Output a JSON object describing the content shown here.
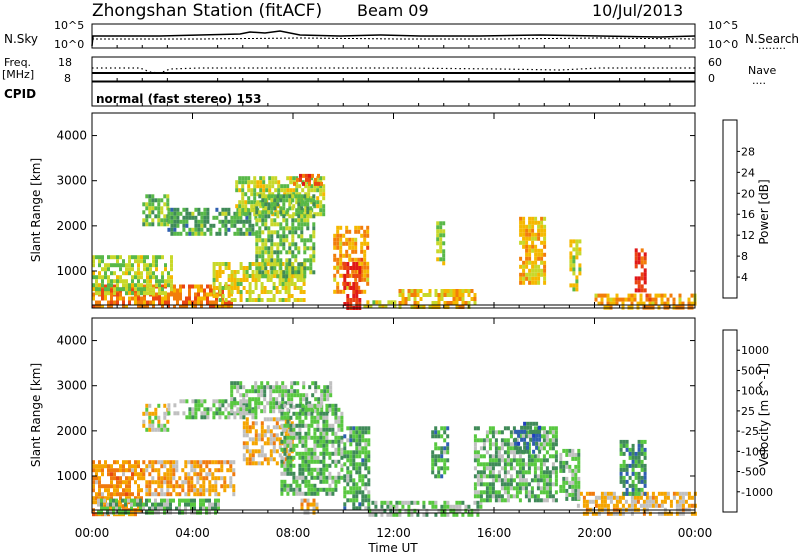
{
  "header": {
    "station_title": "Zhongshan Station (fitACF)",
    "beam_label": "Beam 09",
    "date_label": "10/Jul/2013"
  },
  "sky_panel": {
    "left_label": "N.Sky",
    "left_top": "10^5",
    "left_bottom": "10^0",
    "right_label": "N.Search",
    "right_top": "10^5",
    "right_bottom": "10^0",
    "right_legend": "........"
  },
  "freq_panel": {
    "left_label_1": "Freq.",
    "left_label_2": "[MHz]",
    "left_top": "18",
    "left_bottom": "8",
    "right_label": "Nave",
    "right_top": "60",
    "right_bottom": "0",
    "right_legend": "...."
  },
  "cpid_panel": {
    "label": "CPID",
    "mode": "normal (fast stereo) 153"
  },
  "colors": {
    "power": [
      "#1a2bff",
      "#2f5fb0",
      "#3f8a58",
      "#58b848",
      "#c8d82a",
      "#f5b800",
      "#f27d0a",
      "#ea4512",
      "#e01818"
    ],
    "velocity": [
      "#e01818",
      "#e84a10",
      "#f07a0e",
      "#f5a500",
      "#c0c0c0",
      "#58c840",
      "#3f8a58",
      "#2f5fb0",
      "#1f3fc0"
    ]
  },
  "chart_data": [
    {
      "type": "heatmap",
      "title": "Zhongshan Station (fitACF)",
      "xlabel": "",
      "ylabel": "Slant Range [km]",
      "xlim_hours": [
        0,
        24
      ],
      "ylim": [
        180,
        4500
      ],
      "yticks": [
        1000,
        2000,
        3000,
        4000
      ],
      "colorbar": {
        "label": "Power [dB]",
        "ticks": [
          "4",
          "8",
          "12",
          "16",
          "20",
          "24",
          "28"
        ],
        "range": [
          0,
          30
        ]
      },
      "regions": [
        {
          "t": [
            0.0,
            5.5
          ],
          "r": [
            180,
            700
          ],
          "level": 22
        },
        {
          "t": [
            0.0,
            3.2
          ],
          "r": [
            500,
            1350
          ],
          "level": 14
        },
        {
          "t": [
            2.0,
            3.0
          ],
          "r": [
            2000,
            2700
          ],
          "level": 12
        },
        {
          "t": [
            3.0,
            6.5
          ],
          "r": [
            1800,
            2400
          ],
          "level": 10
        },
        {
          "t": [
            4.8,
            8.5
          ],
          "r": [
            400,
            1200
          ],
          "level": 16
        },
        {
          "t": [
            5.7,
            9.2
          ],
          "r": [
            2300,
            3100
          ],
          "level": 14
        },
        {
          "t": [
            6.5,
            8.8
          ],
          "r": [
            900,
            2700
          ],
          "level": 12
        },
        {
          "t": [
            8.0,
            9.1
          ],
          "r": [
            2900,
            3150
          ],
          "level": 24
        },
        {
          "t": [
            9.6,
            11.0
          ],
          "r": [
            500,
            2000
          ],
          "level": 20
        },
        {
          "t": [
            10.0,
            10.6
          ],
          "r": [
            200,
            1200
          ],
          "level": 28
        },
        {
          "t": [
            10.8,
            12.0
          ],
          "r": [
            180,
            350
          ],
          "level": 16
        },
        {
          "t": [
            12.2,
            15.2
          ],
          "r": [
            180,
            600
          ],
          "level": 18
        },
        {
          "t": [
            13.7,
            14.0
          ],
          "r": [
            1200,
            2100
          ],
          "level": 14
        },
        {
          "t": [
            17.0,
            18.0
          ],
          "r": [
            700,
            2200
          ],
          "level": 18
        },
        {
          "t": [
            19.0,
            19.4
          ],
          "r": [
            600,
            1700
          ],
          "level": 16
        },
        {
          "t": [
            20.0,
            24.0
          ],
          "r": [
            180,
            500
          ],
          "level": 20
        },
        {
          "t": [
            21.6,
            22.0
          ],
          "r": [
            600,
            1500
          ],
          "level": 26
        }
      ]
    },
    {
      "type": "heatmap",
      "xlabel": "Time UT",
      "ylabel": "Slant Range [km]",
      "xlim_hours": [
        0,
        24
      ],
      "xticks": [
        "00:00",
        "04:00",
        "08:00",
        "12:00",
        "16:00",
        "20:00",
        "00:00"
      ],
      "ylim": [
        180,
        4500
      ],
      "yticks": [
        1000,
        2000,
        3000,
        4000
      ],
      "colorbar": {
        "label": "Velocity [m s^-1]",
        "ticks": [
          "1000",
          "500",
          "100",
          "25",
          "-25",
          "-100",
          "-500",
          "-1000"
        ],
        "range": [
          -1200,
          1200
        ]
      },
      "regions": [
        {
          "t": [
            0.0,
            2.0
          ],
          "r": [
            180,
            1350
          ],
          "level": 400
        },
        {
          "t": [
            2.0,
            5.6
          ],
          "r": [
            600,
            1350
          ],
          "level": 300
        },
        {
          "t": [
            0.2,
            5.0
          ],
          "r": [
            180,
            500
          ],
          "level": -300
        },
        {
          "t": [
            2.0,
            3.0
          ],
          "r": [
            2000,
            2600
          ],
          "level": 0
        },
        {
          "t": [
            3.0,
            6.5
          ],
          "r": [
            2300,
            2700
          ],
          "level": -200
        },
        {
          "t": [
            5.5,
            9.5
          ],
          "r": [
            2400,
            3100
          ],
          "level": -200
        },
        {
          "t": [
            6.0,
            8.0
          ],
          "r": [
            1300,
            2300
          ],
          "level": 200
        },
        {
          "t": [
            7.5,
            10.0
          ],
          "r": [
            600,
            2600
          ],
          "level": -300
        },
        {
          "t": [
            8.3,
            9.0
          ],
          "r": [
            200,
            500
          ],
          "level": 300
        },
        {
          "t": [
            10.0,
            11.0
          ],
          "r": [
            300,
            2100
          ],
          "level": -400
        },
        {
          "t": [
            11.0,
            15.5
          ],
          "r": [
            180,
            450
          ],
          "level": -200
        },
        {
          "t": [
            13.5,
            14.2
          ],
          "r": [
            1000,
            2100
          ],
          "level": -400
        },
        {
          "t": [
            15.2,
            18.5
          ],
          "r": [
            500,
            2100
          ],
          "level": -300
        },
        {
          "t": [
            16.8,
            17.8
          ],
          "r": [
            1500,
            2200
          ],
          "level": -700
        },
        {
          "t": [
            18.6,
            19.4
          ],
          "r": [
            500,
            1600
          ],
          "level": -200
        },
        {
          "t": [
            19.3,
            24.0
          ],
          "r": [
            180,
            650
          ],
          "level": 200
        },
        {
          "t": [
            21.0,
            22.0
          ],
          "r": [
            600,
            1800
          ],
          "level": -500
        }
      ]
    }
  ]
}
